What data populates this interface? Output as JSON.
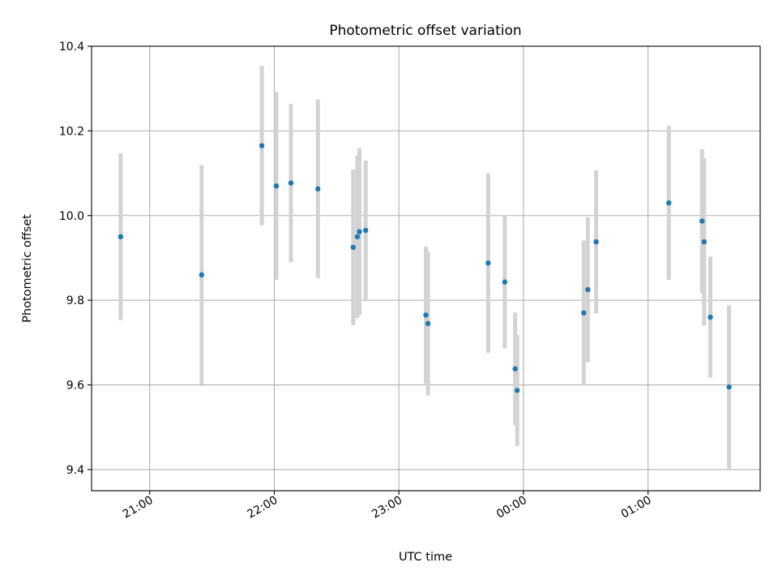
{
  "chart_data": {
    "type": "scatter",
    "title": "Photometric offset variation",
    "xlabel": "UTC time",
    "ylabel": "Photometric offset",
    "x_axis": "time",
    "xlim": [
      "20:32",
      "01:54"
    ],
    "ylim": [
      9.35,
      10.4
    ],
    "y_ticks": [
      9.4,
      9.6,
      9.8,
      10.0,
      10.2,
      10.4
    ],
    "y_tick_labels": [
      "9.4",
      "9.6",
      "9.8",
      "10.0",
      "10.2",
      "10.4"
    ],
    "x_ticks": [
      "21:00",
      "22:00",
      "23:00",
      "00:00",
      "01:00"
    ],
    "x_tick_labels": [
      "21:00",
      "22:00",
      "23:00",
      "00:00",
      "01:00"
    ],
    "grid": true,
    "marker_color": "#1f77b4",
    "errorbar_color": "#d3d3d3",
    "series": [
      {
        "points": [
          {
            "x": "20:46",
            "y": 9.95,
            "err": 0.197
          },
          {
            "x": "21:25",
            "y": 9.86,
            "err": 0.259
          },
          {
            "x": "21:54",
            "y": 10.165,
            "err": 0.188
          },
          {
            "x": "22:01",
            "y": 10.07,
            "err": 0.222
          },
          {
            "x": "22:08",
            "y": 10.077,
            "err": 0.187
          },
          {
            "x": "22:21",
            "y": 10.063,
            "err": 0.211
          },
          {
            "x": "22:38",
            "y": 9.925,
            "err": 0.184
          },
          {
            "x": "22:40",
            "y": 9.95,
            "err": 0.192
          },
          {
            "x": "22:41",
            "y": 9.962,
            "err": 0.197
          },
          {
            "x": "22:44",
            "y": 9.965,
            "err": 0.165
          },
          {
            "x": "23:13",
            "y": 9.765,
            "err": 0.162
          },
          {
            "x": "23:14",
            "y": 9.745,
            "err": 0.17
          },
          {
            "x": "23:43",
            "y": 9.888,
            "err": 0.212
          },
          {
            "x": "23:51",
            "y": 9.843,
            "err": 0.157
          },
          {
            "x": "23:56",
            "y": 9.638,
            "err": 0.133
          },
          {
            "x": "23:57",
            "y": 9.587,
            "err": 0.131
          },
          {
            "x": "00:29",
            "y": 9.77,
            "err": 0.171
          },
          {
            "x": "00:31",
            "y": 9.825,
            "err": 0.171
          },
          {
            "x": "00:35",
            "y": 9.938,
            "err": 0.169
          },
          {
            "x": "01:10",
            "y": 10.03,
            "err": 0.182
          },
          {
            "x": "01:26",
            "y": 9.987,
            "err": 0.17
          },
          {
            "x": "01:27",
            "y": 9.938,
            "err": 0.198
          },
          {
            "x": "01:30",
            "y": 9.76,
            "err": 0.143
          },
          {
            "x": "01:39",
            "y": 9.595,
            "err": 0.193
          }
        ]
      }
    ]
  }
}
